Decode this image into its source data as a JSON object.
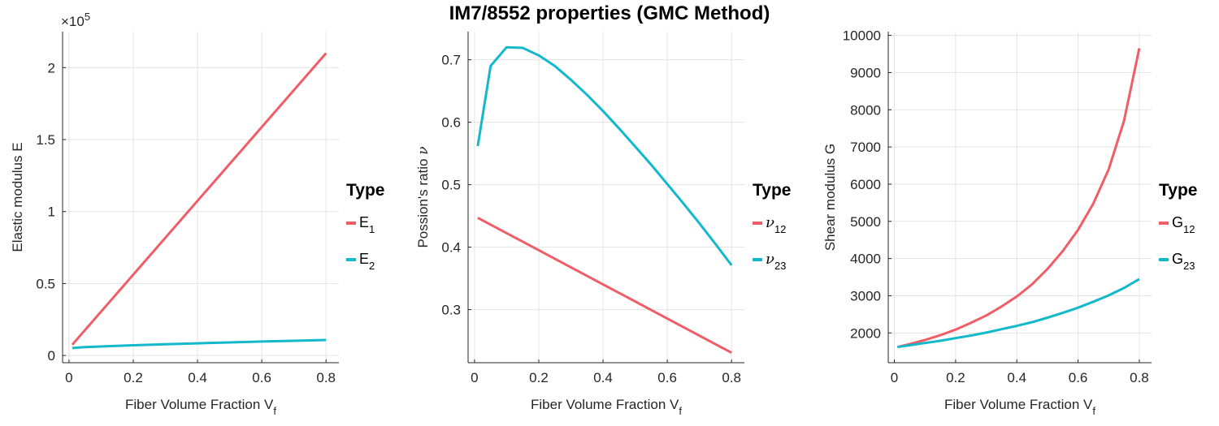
{
  "page": {
    "title": "IM7/8552 properties (GMC Method)"
  },
  "colors": {
    "series1": "#EF5D67",
    "series2": "#14B8CB",
    "grid": "#e3e3e3",
    "axis": "#262626"
  },
  "chart_data": [
    {
      "type": "line",
      "xlabel": {
        "text": "Fiber Volume Fraction V",
        "sub": "f"
      },
      "ylabel": {
        "text": "Elastic modulus E"
      },
      "exponent_label": {
        "base": "×10",
        "power": "5"
      },
      "xlim": [
        -0.02,
        0.84
      ],
      "ylim": [
        -5000,
        225000
      ],
      "xticks": [
        0,
        0.2,
        0.4,
        0.6,
        0.8
      ],
      "xtick_labels": [
        "0",
        "0.2",
        "0.4",
        "0.6",
        "0.8"
      ],
      "yticks": [
        0,
        50000,
        100000,
        150000,
        200000
      ],
      "ytick_labels": [
        "0",
        "0.5",
        "1",
        "1.5",
        "2"
      ],
      "grid": true,
      "legend": {
        "title": "Type",
        "position": "right"
      },
      "series": [
        {
          "name": "E",
          "name_sub": "1",
          "greek": false,
          "color": "#EF5D67",
          "x": [
            0.01,
            0.8
          ],
          "y": [
            7500,
            210000
          ]
        },
        {
          "name": "E",
          "name_sub": "2",
          "greek": false,
          "color": "#14B8CB",
          "x": [
            0.01,
            0.05,
            0.1,
            0.2,
            0.3,
            0.4,
            0.5,
            0.6,
            0.7,
            0.8
          ],
          "y": [
            5200,
            5900,
            6300,
            7100,
            7800,
            8500,
            9100,
            9700,
            10200,
            10800
          ]
        }
      ]
    },
    {
      "type": "line",
      "xlabel": {
        "text": "Fiber Volume Fraction V",
        "sub": "f"
      },
      "ylabel": {
        "text": "Possion's ratio ",
        "greek": "ν"
      },
      "xlim": [
        -0.02,
        0.84
      ],
      "ylim": [
        0.215,
        0.745
      ],
      "xticks": [
        0,
        0.2,
        0.4,
        0.6,
        0.8
      ],
      "xtick_labels": [
        "0",
        "0.2",
        "0.4",
        "0.6",
        "0.8"
      ],
      "yticks": [
        0.3,
        0.4,
        0.5,
        0.6,
        0.7
      ],
      "ytick_labels": [
        "0.3",
        "0.4",
        "0.5",
        "0.6",
        "0.7"
      ],
      "grid": true,
      "legend": {
        "title": "Type",
        "position": "right"
      },
      "series": [
        {
          "name": "ν",
          "name_sub": "12",
          "greek": true,
          "color": "#EF5D67",
          "x": [
            0.01,
            0.8
          ],
          "y": [
            0.447,
            0.231
          ]
        },
        {
          "name": "ν",
          "name_sub": "23",
          "greek": true,
          "color": "#14B8CB",
          "x": [
            0.01,
            0.05,
            0.1,
            0.15,
            0.2,
            0.25,
            0.3,
            0.35,
            0.4,
            0.45,
            0.5,
            0.55,
            0.6,
            0.65,
            0.7,
            0.75,
            0.8
          ],
          "y": [
            0.562,
            0.69,
            0.72,
            0.719,
            0.707,
            0.69,
            0.668,
            0.644,
            0.618,
            0.59,
            0.561,
            0.532,
            0.501,
            0.47,
            0.438,
            0.405,
            0.371
          ]
        }
      ]
    },
    {
      "type": "line",
      "xlabel": {
        "text": "Fiber Volume Fraction V",
        "sub": "f"
      },
      "ylabel": {
        "text": "Shear modulus G"
      },
      "xlim": [
        -0.02,
        0.84
      ],
      "ylim": [
        1200,
        10100
      ],
      "xticks": [
        0,
        0.2,
        0.4,
        0.6,
        0.8
      ],
      "xtick_labels": [
        "0",
        "0.2",
        "0.4",
        "0.6",
        "0.8"
      ],
      "yticks": [
        2000,
        3000,
        4000,
        5000,
        6000,
        7000,
        8000,
        9000,
        10000
      ],
      "ytick_labels": [
        "2000",
        "3000",
        "4000",
        "5000",
        "6000",
        "7000",
        "8000",
        "9000",
        "10000"
      ],
      "grid": true,
      "legend": {
        "title": "Type",
        "position": "right"
      },
      "series": [
        {
          "name": "G",
          "name_sub": "12",
          "greek": false,
          "color": "#EF5D67",
          "x": [
            0.01,
            0.05,
            0.1,
            0.15,
            0.2,
            0.25,
            0.3,
            0.35,
            0.4,
            0.45,
            0.5,
            0.55,
            0.6,
            0.65,
            0.7,
            0.75,
            0.8
          ],
          "y": [
            1620,
            1700,
            1810,
            1940,
            2090,
            2270,
            2470,
            2710,
            2980,
            3310,
            3720,
            4200,
            4770,
            5480,
            6400,
            7700,
            9650
          ]
        },
        {
          "name": "G",
          "name_sub": "23",
          "greek": false,
          "color": "#14B8CB",
          "x": [
            0.01,
            0.05,
            0.1,
            0.15,
            0.2,
            0.25,
            0.3,
            0.35,
            0.4,
            0.45,
            0.5,
            0.55,
            0.6,
            0.65,
            0.7,
            0.75,
            0.8
          ],
          "y": [
            1620,
            1670,
            1730,
            1790,
            1860,
            1930,
            2010,
            2100,
            2190,
            2290,
            2410,
            2540,
            2680,
            2840,
            3010,
            3210,
            3450
          ]
        }
      ]
    }
  ]
}
